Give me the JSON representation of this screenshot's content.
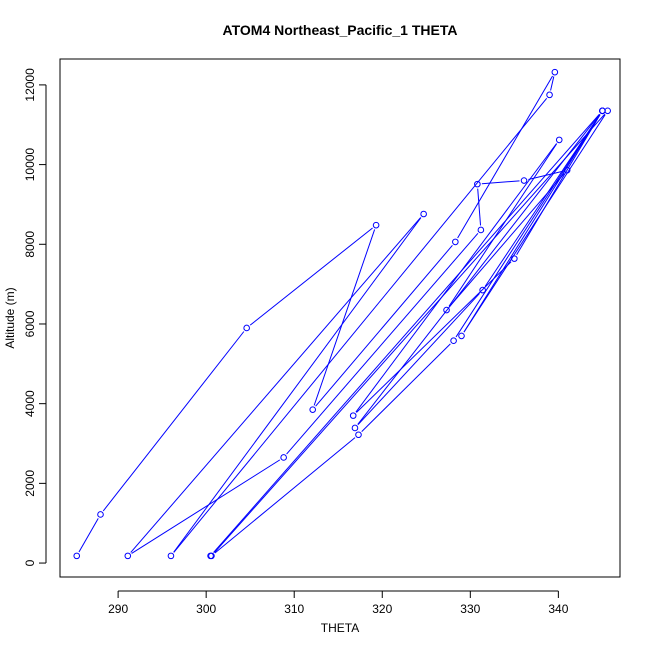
{
  "chart_data": {
    "type": "line",
    "title": "ATOM4 Northeast_Pacific_1 THETA",
    "xlabel": "THETA",
    "ylabel": "Altitude (m)",
    "xlim": [
      283.4,
      347.0
    ],
    "ylim": [
      -350,
      12650
    ],
    "xticks": [
      290,
      300,
      310,
      320,
      330,
      340
    ],
    "yticks": [
      0,
      2000,
      4000,
      6000,
      8000,
      10000,
      12000
    ],
    "grid": false,
    "legend": "none",
    "colors": {
      "series": "#0000ff",
      "axis": "#000000"
    },
    "series": [
      {
        "points": [
          [
            285.3,
            180
          ],
          [
            288.0,
            1220
          ],
          [
            304.6,
            5900
          ],
          [
            319.3,
            8480
          ],
          [
            312.1,
            3850
          ],
          [
            328.3,
            8060
          ],
          [
            339.6,
            12320
          ],
          [
            339.0,
            11750
          ],
          [
            296.0,
            180
          ],
          [
            324.7,
            8760
          ],
          [
            291.1,
            180
          ],
          [
            308.8,
            2650
          ],
          [
            331.2,
            8360
          ],
          [
            330.8,
            9510
          ],
          [
            336.1,
            9600
          ],
          [
            341.0,
            9860
          ],
          [
            327.3,
            6350
          ],
          [
            340.1,
            10620
          ],
          [
            316.7,
            3700
          ],
          [
            335.0,
            7640
          ],
          [
            345.0,
            11350
          ],
          [
            329.0,
            5700
          ],
          [
            345.6,
            11350
          ],
          [
            300.6,
            180
          ],
          [
            317.3,
            3220
          ],
          [
            328.1,
            5580
          ],
          [
            345.0,
            11350
          ],
          [
            316.9,
            3390
          ],
          [
            331.4,
            6850
          ],
          [
            345.0,
            11350
          ],
          [
            300.5,
            180
          ]
        ]
      }
    ]
  }
}
